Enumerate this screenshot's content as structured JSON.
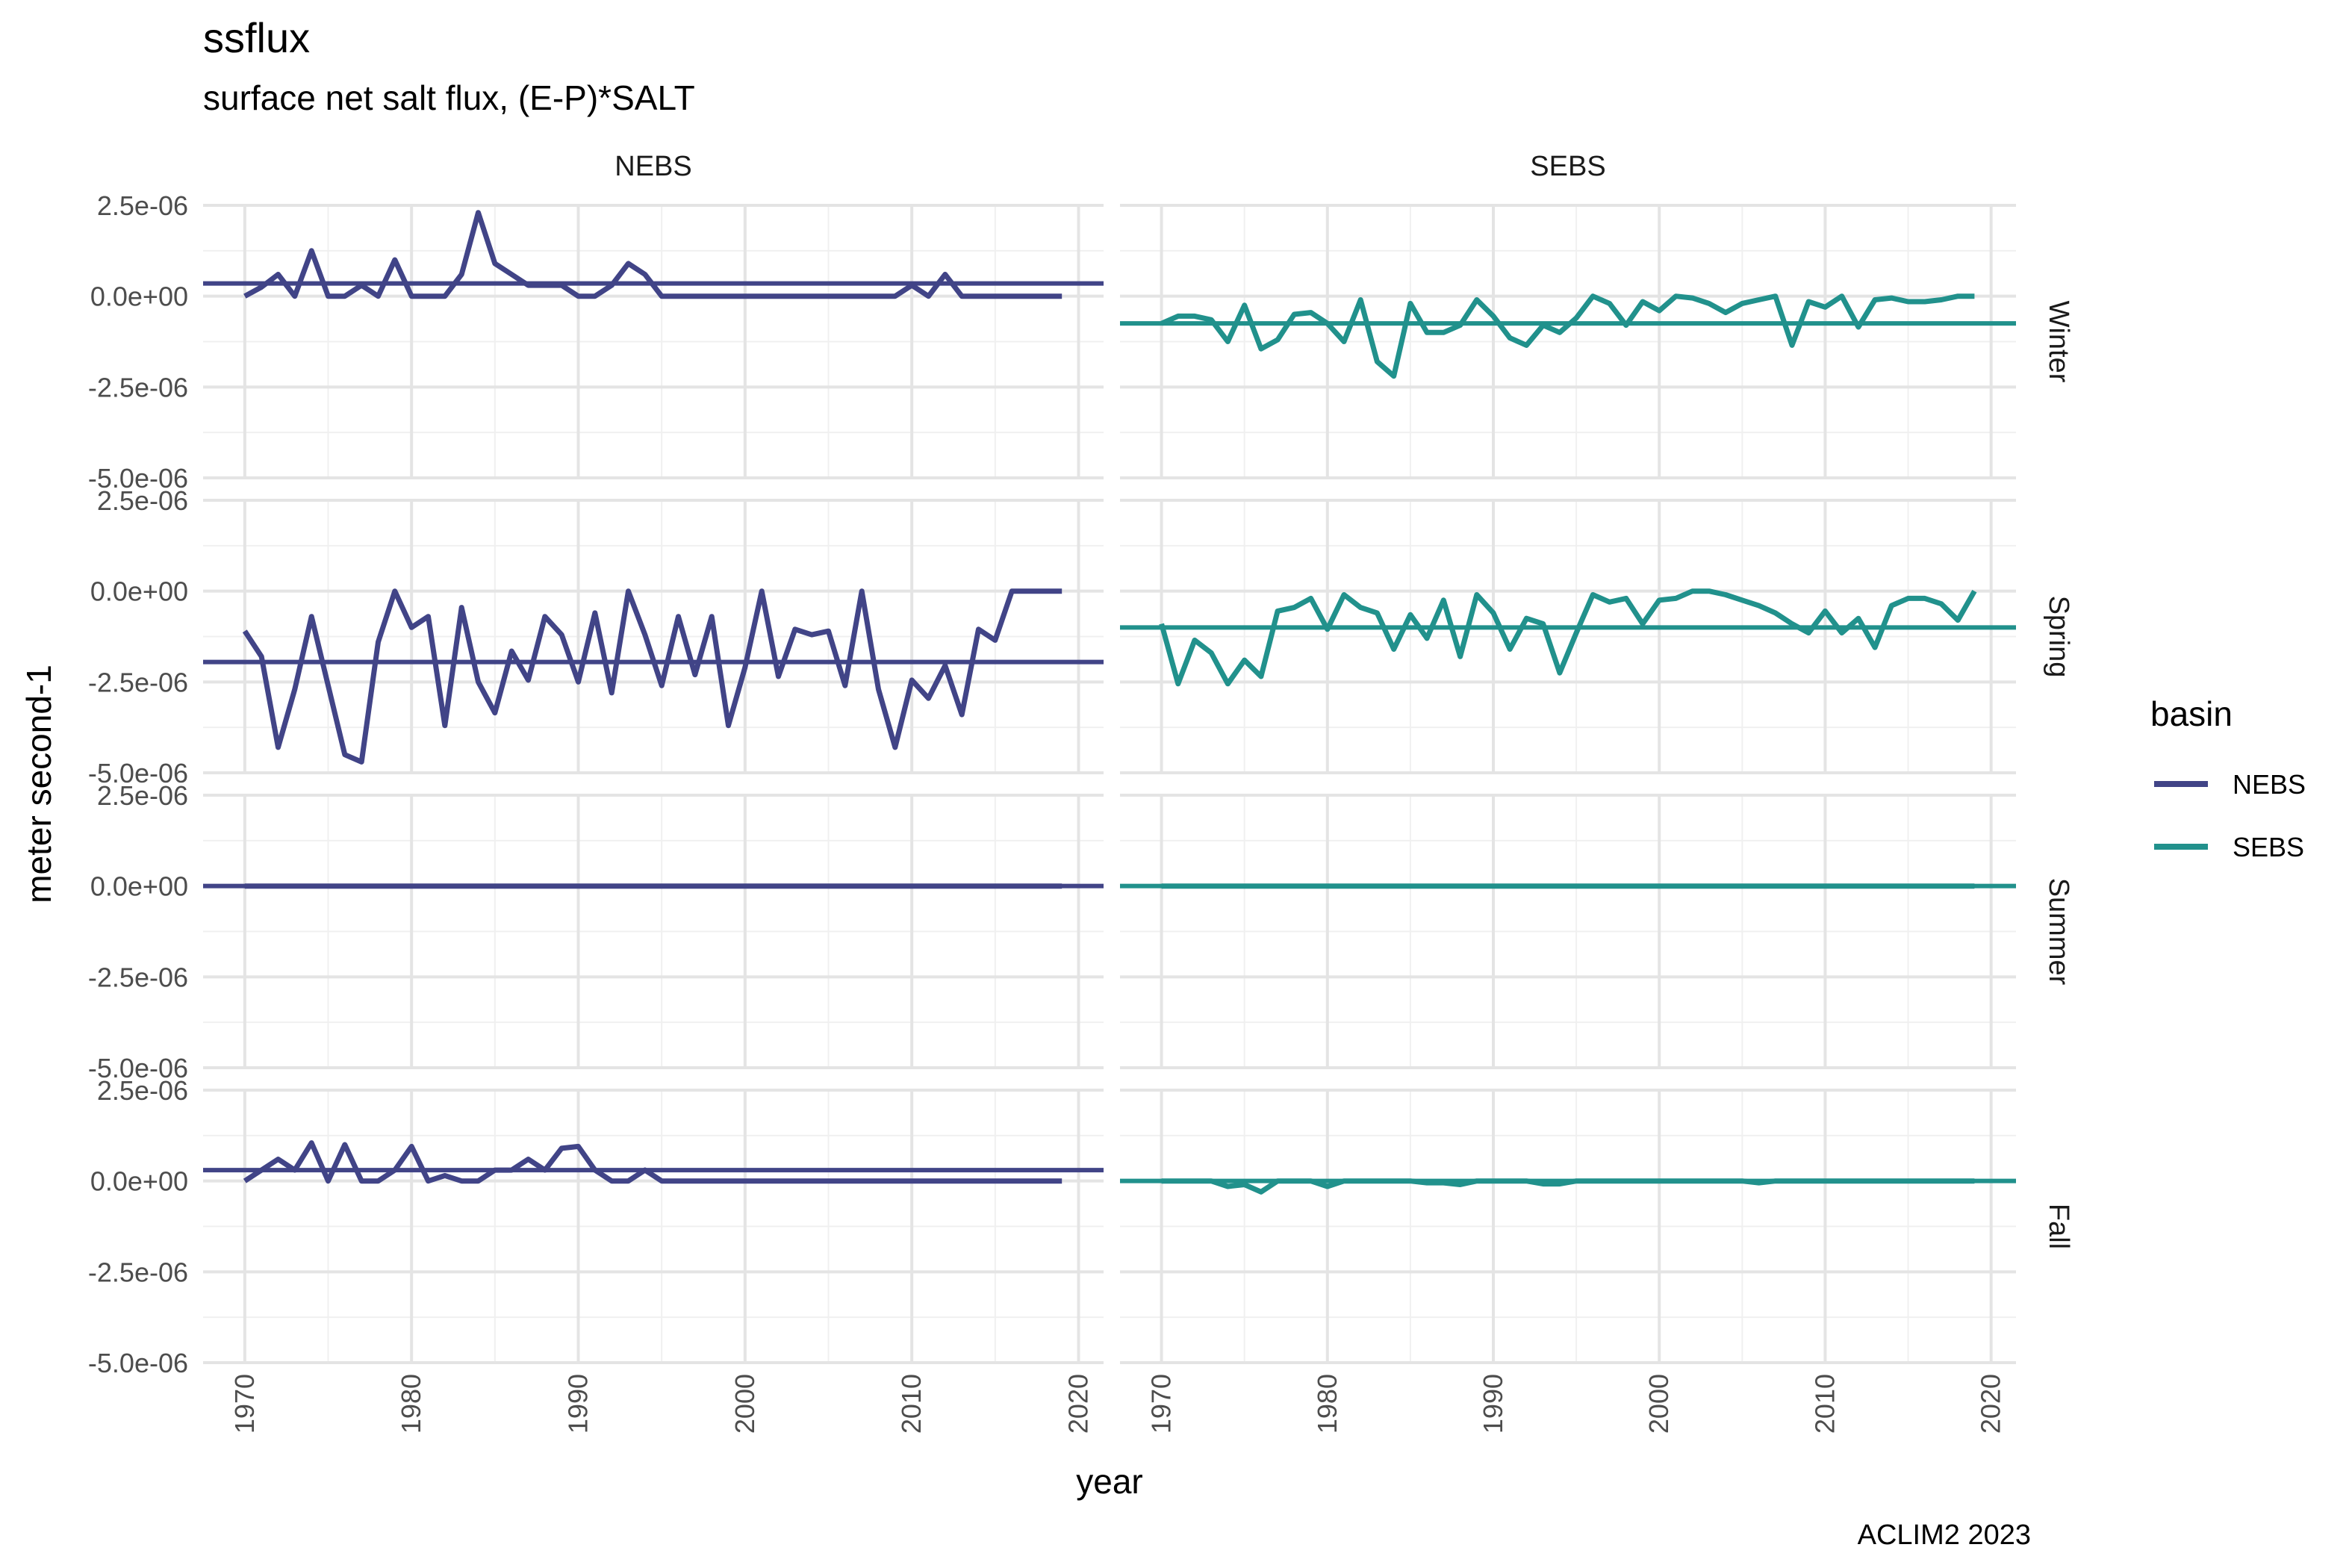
{
  "chart_data": {
    "type": "line",
    "title": "ssflux",
    "subtitle": "surface net salt flux, (E-P)*SALT",
    "xlabel": "year",
    "ylabel": "meter second-1",
    "caption": "ACLIM2 2023",
    "xlim": [
      1967.5,
      2021.5
    ],
    "ylim": [
      -5e-06,
      2.5e-06
    ],
    "x_ticks": [
      1970,
      1980,
      1990,
      2000,
      2010,
      2020
    ],
    "x_tick_labels": [
      "1970",
      "1980",
      "1990",
      "2000",
      "2010",
      "2020"
    ],
    "y_ticks": [
      2.5e-06,
      0,
      -2.5e-06,
      -5e-06
    ],
    "y_tick_labels": [
      "2.5e-06",
      "0.0e+00",
      "-2.5e-06",
      "-5.0e-06"
    ],
    "grid": true,
    "facet_columns": [
      "NEBS",
      "SEBS"
    ],
    "facet_rows": [
      "Winter",
      "Spring",
      "Summer",
      "Fall"
    ],
    "legend": {
      "title": "basin",
      "placement": "right",
      "entries": [
        {
          "name": "NEBS",
          "color": "#414487"
        },
        {
          "name": "SEBS",
          "color": "#21918c"
        }
      ]
    },
    "x": [
      1970,
      1971,
      1972,
      1973,
      1974,
      1975,
      1976,
      1977,
      1978,
      1979,
      1980,
      1981,
      1982,
      1983,
      1984,
      1985,
      1986,
      1987,
      1988,
      1989,
      1990,
      1991,
      1992,
      1993,
      1994,
      1995,
      1996,
      1997,
      1998,
      1999,
      2000,
      2001,
      2002,
      2003,
      2004,
      2005,
      2006,
      2007,
      2008,
      2009,
      2010,
      2011,
      2012,
      2013,
      2014,
      2015,
      2016,
      2017,
      2018,
      2019
    ],
    "panels": [
      {
        "row": "Winter",
        "col": "NEBS",
        "color": "#414487",
        "mean": 3.5e-07,
        "values": [
          0,
          2.5e-07,
          6e-07,
          0,
          1.25e-06,
          0,
          0,
          3e-07,
          0,
          1e-06,
          0,
          0,
          0,
          6e-07,
          2.3e-06,
          9e-07,
          6e-07,
          3e-07,
          3e-07,
          3e-07,
          0,
          0,
          3e-07,
          9e-07,
          6e-07,
          0,
          0,
          0,
          0,
          0,
          0,
          0,
          0,
          0,
          0,
          0,
          0,
          0,
          0,
          0,
          3e-07,
          0,
          6e-07,
          0,
          0,
          0,
          0,
          0,
          0,
          0
        ]
      },
      {
        "row": "Winter",
        "col": "SEBS",
        "color": "#21918c",
        "mean": -7.5e-07,
        "values": [
          -7.5e-07,
          -5.5e-07,
          -5.5e-07,
          -6.5e-07,
          -1.25e-06,
          -2.5e-07,
          -1.45e-06,
          -1.2e-06,
          -5e-07,
          -4.5e-07,
          -7.5e-07,
          -1.25e-06,
          -1e-07,
          -1.8e-06,
          -2.2e-06,
          -2e-07,
          -1e-06,
          -1e-06,
          -8e-07,
          -1e-07,
          -5.5e-07,
          -1.15e-06,
          -1.35e-06,
          -8e-07,
          -1e-06,
          -6e-07,
          0,
          -2e-07,
          -8e-07,
          -1.5e-07,
          -4e-07,
          0,
          -5e-08,
          -2e-07,
          -4.5e-07,
          -2e-07,
          -1e-07,
          0,
          -1.35e-06,
          -1.5e-07,
          -3e-07,
          0,
          -8.5e-07,
          -1e-07,
          -5e-08,
          -1.5e-07,
          -1.5e-07,
          -1e-07,
          0,
          0
        ]
      },
      {
        "row": "Spring",
        "col": "NEBS",
        "color": "#414487",
        "mean": -1.95e-06,
        "values": [
          -1.1e-06,
          -1.8e-06,
          -4.3e-06,
          -2.7e-06,
          -7e-07,
          -2.6e-06,
          -4.5e-06,
          -4.7e-06,
          -1.4e-06,
          0,
          -1e-06,
          -7e-07,
          -3.7e-06,
          -4.5e-07,
          -2.5e-06,
          -3.35e-06,
          -1.65e-06,
          -2.45e-06,
          -7e-07,
          -1.2e-06,
          -2.5e-06,
          -6e-07,
          -2.8e-06,
          0,
          -1.2e-06,
          -2.6e-06,
          -7e-07,
          -2.3e-06,
          -7e-07,
          -3.7e-06,
          -2.1e-06,
          0,
          -2.35e-06,
          -1.05e-06,
          -1.2e-06,
          -1.1e-06,
          -2.6e-06,
          0,
          -2.7e-06,
          -4.3e-06,
          -2.45e-06,
          -2.95e-06,
          -2.05e-06,
          -3.4e-06,
          -1.05e-06,
          -1.35e-06,
          0,
          0,
          0,
          0
        ]
      },
      {
        "row": "Spring",
        "col": "SEBS",
        "color": "#21918c",
        "mean": -1e-06,
        "values": [
          -9e-07,
          -2.55e-06,
          -1.35e-06,
          -1.7e-06,
          -2.55e-06,
          -1.9e-06,
          -2.35e-06,
          -5.5e-07,
          -4.5e-07,
          -2e-07,
          -1.05e-06,
          -1e-07,
          -4.5e-07,
          -6e-07,
          -1.6e-06,
          -6.5e-07,
          -1.3e-06,
          -2.5e-07,
          -1.8e-06,
          -1e-07,
          -6e-07,
          -1.6e-06,
          -7.5e-07,
          -9e-07,
          -2.25e-06,
          -1.15e-06,
          -1e-07,
          -3e-07,
          -2e-07,
          -9e-07,
          -2.5e-07,
          -2e-07,
          0,
          0,
          -1e-07,
          -2.5e-07,
          -4e-07,
          -6e-07,
          -9e-07,
          -1.15e-06,
          -5.5e-07,
          -1.15e-06,
          -7.5e-07,
          -1.55e-06,
          -4e-07,
          -2e-07,
          -2e-07,
          -3.5e-07,
          -8e-07,
          0
        ]
      },
      {
        "row": "Summer",
        "col": "NEBS",
        "color": "#414487",
        "mean": 0,
        "values": [
          0,
          0,
          0,
          0,
          0,
          0,
          0,
          0,
          0,
          0,
          0,
          0,
          0,
          0,
          0,
          0,
          0,
          0,
          0,
          0,
          0,
          0,
          0,
          0,
          0,
          0,
          0,
          0,
          0,
          0,
          0,
          0,
          0,
          0,
          0,
          0,
          0,
          0,
          0,
          0,
          0,
          0,
          0,
          0,
          0,
          0,
          0,
          0,
          0,
          0
        ]
      },
      {
        "row": "Summer",
        "col": "SEBS",
        "color": "#21918c",
        "mean": 0,
        "values": [
          0,
          0,
          0,
          0,
          0,
          0,
          0,
          0,
          0,
          0,
          0,
          0,
          0,
          0,
          0,
          0,
          0,
          0,
          0,
          0,
          0,
          0,
          0,
          0,
          0,
          0,
          0,
          0,
          0,
          0,
          0,
          0,
          0,
          0,
          0,
          0,
          0,
          0,
          0,
          0,
          0,
          0,
          0,
          0,
          0,
          0,
          0,
          0,
          0,
          0
        ]
      },
      {
        "row": "Fall",
        "col": "NEBS",
        "color": "#414487",
        "mean": 3e-07,
        "values": [
          0,
          3e-07,
          6e-07,
          3e-07,
          1.05e-06,
          0,
          1e-06,
          0,
          0,
          3e-07,
          9.5e-07,
          0,
          1.5e-07,
          0,
          0,
          3e-07,
          3e-07,
          6e-07,
          3e-07,
          9e-07,
          9.5e-07,
          3e-07,
          0,
          0,
          3e-07,
          0,
          0,
          0,
          0,
          0,
          0,
          0,
          0,
          0,
          0,
          0,
          0,
          0,
          0,
          0,
          0,
          0,
          0,
          0,
          0,
          0,
          0,
          0,
          0,
          0
        ]
      },
      {
        "row": "Fall",
        "col": "SEBS",
        "color": "#21918c",
        "mean": 0,
        "values": [
          0,
          0,
          0,
          0,
          -1.5e-07,
          -1e-07,
          -3e-07,
          0,
          0,
          0,
          -1.5e-07,
          0,
          0,
          0,
          0,
          0,
          -5e-08,
          -5e-08,
          -1e-07,
          0,
          0,
          0,
          0,
          -8e-08,
          -8e-08,
          0,
          0,
          0,
          0,
          0,
          0,
          0,
          0,
          0,
          0,
          0,
          -5e-08,
          0,
          0,
          0,
          0,
          0,
          0,
          0,
          0,
          0,
          0,
          0,
          0,
          0
        ]
      }
    ]
  }
}
